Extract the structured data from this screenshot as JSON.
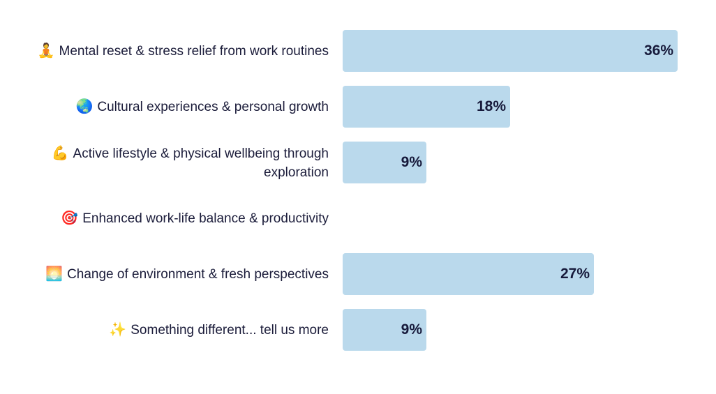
{
  "colors": {
    "bar": "#bad9ec",
    "label_text": "#1b1c3a",
    "value_text": "#171a3b"
  },
  "chart_data": {
    "type": "bar",
    "orientation": "horizontal",
    "xlim": [
      0,
      36
    ],
    "categories": [
      {
        "icon": "🧘",
        "label": "Mental reset & stress relief from work routines"
      },
      {
        "icon": "🌏",
        "label": "Cultural experiences & personal growth"
      },
      {
        "icon": "💪",
        "label": "Active lifestyle & physical wellbeing through exploration"
      },
      {
        "icon": "🎯",
        "label": "Enhanced work-life balance & productivity"
      },
      {
        "icon": "🌅",
        "label": "Change of environment & fresh perspectives"
      },
      {
        "icon": "✨",
        "label": "Something different... tell us more"
      }
    ],
    "values": [
      36,
      18,
      9,
      0,
      27,
      9
    ],
    "value_labels": [
      "36%",
      "18%",
      "9%",
      "",
      "27%",
      "9%"
    ]
  }
}
